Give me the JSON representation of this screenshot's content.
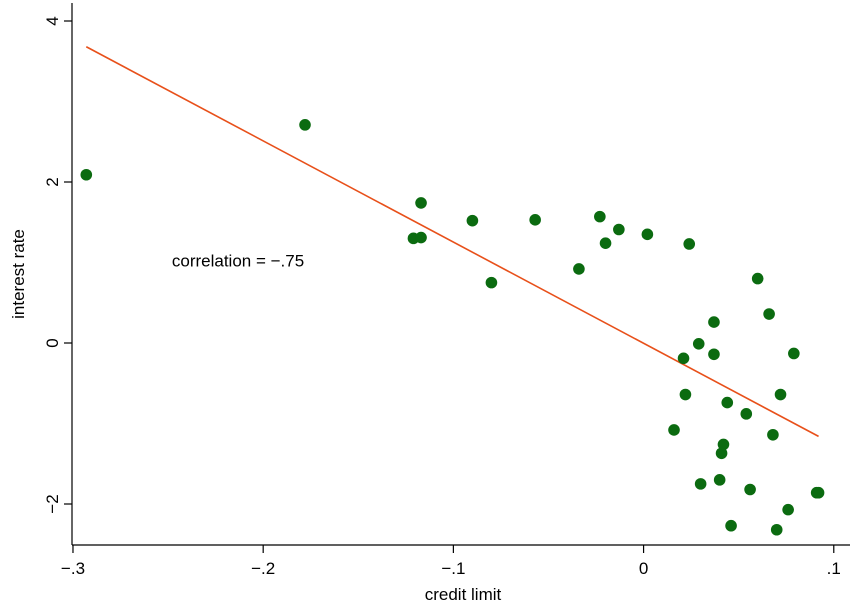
{
  "chart_data": {
    "type": "scatter",
    "xlabel": "credit limit",
    "ylabel": "interest rate",
    "xlim": [
      -0.3,
      0.1
    ],
    "ylim": [
      -2.5,
      4.0
    ],
    "x_ticks": [
      {
        "value": -0.3,
        "label": "−.3"
      },
      {
        "value": -0.2,
        "label": "−.2"
      },
      {
        "value": -0.1,
        "label": "−.1"
      },
      {
        "value": 0,
        "label": "0"
      },
      {
        "value": 0.1,
        "label": ".1"
      }
    ],
    "y_ticks": [
      {
        "value": -2,
        "label": "−2"
      },
      {
        "value": 0,
        "label": "0"
      },
      {
        "value": 2,
        "label": "2"
      },
      {
        "value": 4,
        "label": "4"
      }
    ],
    "grid": false,
    "annotation": {
      "text": "correlation = −.75",
      "x": -0.248,
      "y": 0.95
    },
    "fit_line": {
      "color": "#e8501a",
      "x": [
        -0.293,
        0.092
      ],
      "y": [
        3.68,
        -1.16
      ]
    },
    "marker_color": "#0b6b10",
    "points": [
      {
        "x": -0.293,
        "y": 2.09
      },
      {
        "x": -0.178,
        "y": 2.71
      },
      {
        "x": -0.121,
        "y": 1.3
      },
      {
        "x": -0.117,
        "y": 1.31
      },
      {
        "x": -0.117,
        "y": 1.74
      },
      {
        "x": -0.09,
        "y": 1.52
      },
      {
        "x": -0.08,
        "y": 0.75
      },
      {
        "x": -0.057,
        "y": 1.53
      },
      {
        "x": -0.034,
        "y": 0.92
      },
      {
        "x": -0.023,
        "y": 1.57
      },
      {
        "x": -0.02,
        "y": 1.24
      },
      {
        "x": -0.013,
        "y": 1.41
      },
      {
        "x": 0.002,
        "y": 1.35
      },
      {
        "x": 0.016,
        "y": -1.08
      },
      {
        "x": 0.021,
        "y": -0.19
      },
      {
        "x": 0.022,
        "y": -0.64
      },
      {
        "x": 0.024,
        "y": 1.23
      },
      {
        "x": 0.029,
        "y": -0.01
      },
      {
        "x": 0.03,
        "y": -1.75
      },
      {
        "x": 0.037,
        "y": 0.26
      },
      {
        "x": 0.037,
        "y": -0.14
      },
      {
        "x": 0.04,
        "y": -1.7
      },
      {
        "x": 0.041,
        "y": -1.37
      },
      {
        "x": 0.042,
        "y": -1.26
      },
      {
        "x": 0.044,
        "y": -0.74
      },
      {
        "x": 0.046,
        "y": -2.27
      },
      {
        "x": 0.054,
        "y": -0.88
      },
      {
        "x": 0.056,
        "y": -1.82
      },
      {
        "x": 0.06,
        "y": 0.8
      },
      {
        "x": 0.066,
        "y": 0.36
      },
      {
        "x": 0.068,
        "y": -1.14
      },
      {
        "x": 0.07,
        "y": -2.32
      },
      {
        "x": 0.072,
        "y": -0.64
      },
      {
        "x": 0.076,
        "y": -2.07
      },
      {
        "x": 0.079,
        "y": -0.13
      },
      {
        "x": 0.091,
        "y": -1.86
      },
      {
        "x": 0.092,
        "y": -1.86
      }
    ]
  }
}
